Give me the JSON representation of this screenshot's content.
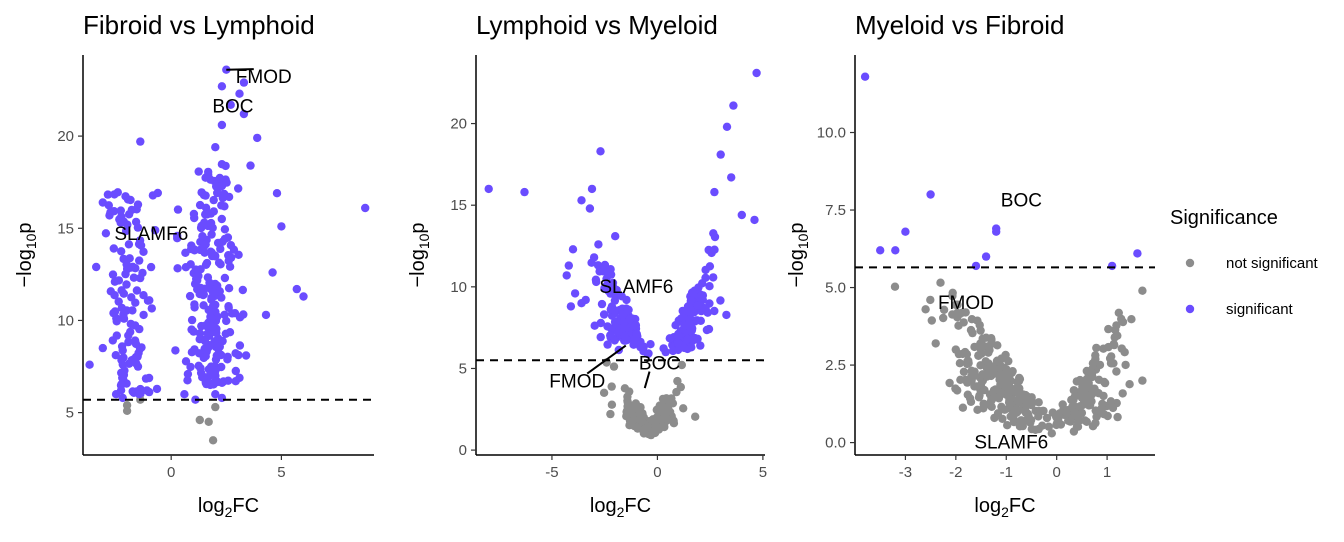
{
  "legend": {
    "title": "Significance",
    "placement": "right",
    "items": [
      {
        "label": "not significant",
        "color": "#8c8c8c"
      },
      {
        "label": "significant",
        "color": "#6a4cff"
      }
    ]
  },
  "chart_data": [
    {
      "type": "scatter",
      "title": "Fibroid vs Lymphoid",
      "xlabel": "log2FC",
      "ylabel": "-log10p",
      "xlim": [
        -4,
        9.2
      ],
      "ylim": [
        2.7,
        24.4
      ],
      "xticks": [
        0,
        5
      ],
      "yticks": [
        5,
        10,
        15,
        20
      ],
      "threshold": 5.7,
      "labels": [
        {
          "text": "FMOD",
          "x": 2.5,
          "y": 23.6,
          "lx": 4.2,
          "ly": 23.2
        },
        {
          "text": "BOC",
          "x": 2.8,
          "y": 21.6,
          "lx": 2.8,
          "ly": 21.6
        },
        {
          "text": "SLAMF6",
          "x": -0.9,
          "y": 14.7,
          "lx": -0.9,
          "ly": 14.7
        }
      ],
      "points": [
        [
          2.5,
          23.6,
          1
        ],
        [
          3.3,
          22.9,
          1
        ],
        [
          2.3,
          22.7,
          1
        ],
        [
          3.1,
          22.3,
          1
        ],
        [
          2.7,
          21.7,
          1
        ],
        [
          3.3,
          21.2,
          1
        ],
        [
          8.8,
          16.1,
          1
        ],
        [
          -1.4,
          19.7,
          1
        ],
        [
          5.7,
          11.7,
          1
        ],
        [
          6.0,
          11.3,
          1
        ],
        [
          -3.1,
          16.4,
          1
        ],
        [
          -2.8,
          15.7,
          1
        ],
        [
          -3.4,
          12.9,
          1
        ],
        [
          -3.7,
          7.6,
          1
        ],
        [
          -3.1,
          8.5,
          1
        ],
        [
          -2.5,
          6.0,
          1
        ],
        [
          -2.2,
          5.8,
          1
        ],
        [
          -1.4,
          6.0,
          1
        ],
        [
          -1.1,
          6.2,
          1
        ],
        [
          0.6,
          6.0,
          1
        ],
        [
          1.1,
          5.7,
          1
        ],
        [
          2.0,
          6.0,
          1
        ],
        [
          2.3,
          5.8,
          1
        ],
        [
          3.4,
          8.1,
          1
        ],
        [
          4.3,
          10.3,
          1
        ],
        [
          4.8,
          16.9,
          1
        ],
        [
          5.0,
          15.1,
          1
        ],
        [
          4.6,
          12.6,
          1
        ],
        [
          3.9,
          19.9,
          1
        ],
        [
          3.6,
          18.4,
          1
        ],
        [
          2.3,
          20.6,
          1
        ],
        [
          2.0,
          19.4,
          1
        ],
        [
          -2.0,
          5.1,
          0
        ],
        [
          -2.0,
          5.4,
          0
        ],
        [
          1.3,
          4.6,
          0
        ],
        [
          1.7,
          4.5,
          0
        ],
        [
          1.9,
          3.5,
          0
        ],
        [
          2.0,
          5.3,
          0
        ],
        [
          -1.4,
          5.7,
          0
        ]
      ],
      "clusters": [
        {
          "cx": -1.8,
          "sx": 0.5,
          "ymin": 6.0,
          "ymax": 17.0,
          "n": 120,
          "seed": 11
        },
        {
          "cx": 1.8,
          "sx": 0.6,
          "ymin": 6.5,
          "ymax": 18.5,
          "n": 220,
          "seed": 23
        }
      ]
    },
    {
      "type": "scatter",
      "title": "Lymphoid vs Myeloid",
      "xlabel": "log2FC",
      "ylabel": "-log10p",
      "xlim": [
        -8.6,
        5.1
      ],
      "ylim": [
        -0.3,
        24.2
      ],
      "xticks": [
        -5,
        0,
        5
      ],
      "yticks": [
        0,
        5,
        10,
        15,
        20
      ],
      "threshold": 5.5,
      "labels": [
        {
          "text": "SLAMF6",
          "x": -1.0,
          "y": 10.0,
          "lx": -1.0,
          "ly": 10.0
        },
        {
          "text": "FMOD",
          "x": -1.5,
          "y": 6.4,
          "lx": -3.8,
          "ly": 4.2
        },
        {
          "text": "BOC",
          "x": -0.6,
          "y": 3.8,
          "lx": 0.1,
          "ly": 5.3
        }
      ],
      "points": [
        [
          -8.0,
          16.0,
          1
        ],
        [
          -6.3,
          15.8,
          1
        ],
        [
          -2.7,
          18.3,
          1
        ],
        [
          -3.1,
          16.0,
          1
        ],
        [
          -3.6,
          15.3,
          1
        ],
        [
          -3.2,
          14.8,
          1
        ],
        [
          -4.0,
          12.3,
          1
        ],
        [
          -4.2,
          11.3,
          1
        ],
        [
          -4.3,
          10.7,
          1
        ],
        [
          -3.9,
          9.6,
          1
        ],
        [
          -3.4,
          9.2,
          1
        ],
        [
          -4.1,
          8.8,
          1
        ],
        [
          -3.0,
          11.8,
          1
        ],
        [
          -2.8,
          12.6,
          1
        ],
        [
          -2.0,
          13.1,
          1
        ],
        [
          4.7,
          23.1,
          1
        ],
        [
          3.6,
          21.1,
          1
        ],
        [
          3.3,
          19.8,
          1
        ],
        [
          3.0,
          18.1,
          1
        ],
        [
          4.6,
          14.1,
          1
        ],
        [
          4.0,
          14.4,
          1
        ],
        [
          3.5,
          16.7,
          1
        ],
        [
          2.7,
          15.8,
          1
        ],
        [
          -2.9,
          10.3,
          1
        ],
        [
          -3.6,
          9.0,
          1
        ]
      ],
      "clusters": [
        {
          "cx": -1.7,
          "sx": 0.6,
          "ymin": 5.6,
          "ymax": 12.5,
          "n": 110,
          "seed": 37,
          "v": -1
        },
        {
          "cx": 1.7,
          "sx": 0.6,
          "ymin": 5.6,
          "ymax": 13.5,
          "n": 110,
          "seed": 41,
          "v": 1
        },
        {
          "cx": -0.4,
          "sx": 0.8,
          "ymin": 0.8,
          "ymax": 5.4,
          "n": 160,
          "seed": 53,
          "v": 0,
          "grey": true
        }
      ]
    },
    {
      "type": "scatter",
      "title": "Myeloid vs Fibroid",
      "xlabel": "log2FC",
      "ylabel": "-log10p",
      "xlim": [
        -4.0,
        1.95
      ],
      "ylim": [
        -0.4,
        12.5
      ],
      "xticks": [
        -3,
        -2,
        -1,
        0,
        1
      ],
      "yticks": [
        0.0,
        2.5,
        5.0,
        7.5,
        10.0
      ],
      "threshold": 5.65,
      "labels": [
        {
          "text": "BOC",
          "x": -0.7,
          "y": 7.8,
          "lx": -0.7,
          "ly": 7.8
        },
        {
          "text": "FMOD",
          "x": -1.8,
          "y": 4.5,
          "lx": -1.8,
          "ly": 4.5
        },
        {
          "text": "SLAMF6",
          "x": -0.9,
          "y": 0.0,
          "lx": -0.9,
          "ly": 0.0
        }
      ],
      "points": [
        [
          -3.8,
          11.8,
          1
        ],
        [
          -2.5,
          8.0,
          1
        ],
        [
          -1.2,
          6.9,
          1
        ],
        [
          -1.2,
          6.8,
          1
        ],
        [
          -3.0,
          6.8,
          1
        ],
        [
          -3.5,
          6.2,
          1
        ],
        [
          -3.2,
          6.2,
          1
        ],
        [
          -1.4,
          6.0,
          1
        ],
        [
          -1.6,
          5.7,
          1
        ],
        [
          1.6,
          6.1,
          1
        ],
        [
          1.1,
          5.7,
          1
        ],
        [
          1.7,
          4.9,
          0
        ],
        [
          1.7,
          2.0,
          0
        ],
        [
          -2.4,
          3.2,
          0
        ],
        [
          -2.0,
          3.0,
          0
        ],
        [
          -2.6,
          4.3,
          0
        ]
      ],
      "clusters": [
        {
          "cx": -1.2,
          "sx": 0.5,
          "ymin": 0.2,
          "ymax": 5.4,
          "n": 230,
          "seed": 61,
          "v": -1,
          "grey": true
        },
        {
          "cx": 0.6,
          "sx": 0.35,
          "ymin": 0.2,
          "ymax": 4.2,
          "n": 140,
          "seed": 67,
          "v": 1,
          "grey": true
        }
      ]
    }
  ]
}
